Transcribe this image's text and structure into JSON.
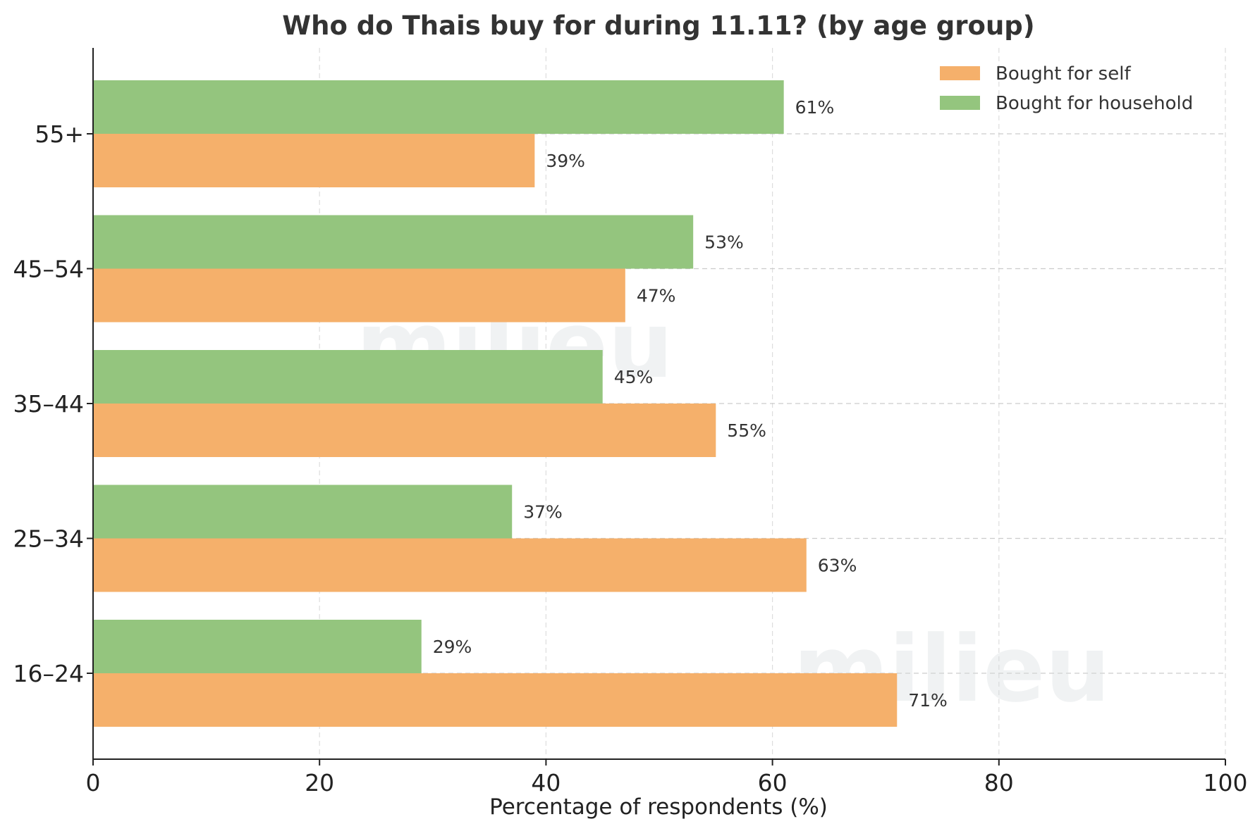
{
  "chart_data": {
    "type": "bar",
    "orientation": "horizontal",
    "title": "Who do Thais buy for during 11.11? (by age group)",
    "xlabel": "Percentage of respondents (%)",
    "ylabel": "",
    "xlim": [
      0,
      100
    ],
    "x_ticks": [
      0,
      20,
      40,
      60,
      80,
      100
    ],
    "x_tick_labels": [
      "0",
      "20",
      "40",
      "60",
      "80",
      "100"
    ],
    "categories": [
      "16–24",
      "25–34",
      "35–44",
      "45–54",
      "55+"
    ],
    "series": [
      {
        "name": "Bought for self",
        "color": "#F5B06B",
        "values": [
          71,
          63,
          55,
          47,
          39
        ],
        "labels": [
          "71%",
          "63%",
          "55%",
          "47%",
          "39%"
        ]
      },
      {
        "name": "Bought for household",
        "color": "#94C57E",
        "values": [
          29,
          37,
          45,
          53,
          61
        ],
        "labels": [
          "29%",
          "37%",
          "45%",
          "53%",
          "61%"
        ]
      }
    ],
    "legend_position": "top-right",
    "grid": true,
    "watermark": "milieu"
  }
}
